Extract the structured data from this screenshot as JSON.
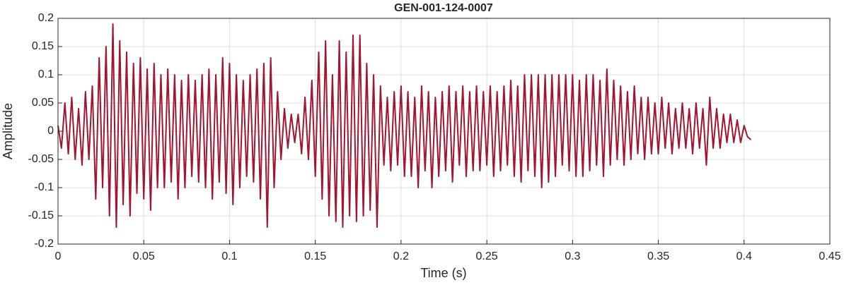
{
  "chart_data": {
    "type": "line",
    "title": "GEN-001-124-0007",
    "xlabel": "Time (s)",
    "ylabel": "Amplitude",
    "x": [
      0,
      0.002,
      0.004,
      0.006,
      0.008,
      0.01,
      0.012,
      0.014,
      0.016,
      0.018,
      0.02,
      0.022,
      0.024,
      0.026,
      0.028,
      0.03,
      0.032,
      0.034,
      0.036,
      0.038,
      0.04,
      0.042,
      0.044,
      0.046,
      0.048,
      0.05,
      0.052,
      0.054,
      0.056,
      0.058,
      0.06,
      0.062,
      0.064,
      0.066,
      0.068,
      0.07,
      0.072,
      0.074,
      0.076,
      0.078,
      0.08,
      0.082,
      0.084,
      0.086,
      0.088,
      0.09,
      0.092,
      0.094,
      0.096,
      0.098,
      0.1,
      0.102,
      0.104,
      0.106,
      0.108,
      0.11,
      0.112,
      0.114,
      0.116,
      0.118,
      0.12,
      0.122,
      0.124,
      0.126,
      0.128,
      0.13,
      0.132,
      0.134,
      0.136,
      0.138,
      0.14,
      0.142,
      0.144,
      0.146,
      0.148,
      0.15,
      0.152,
      0.154,
      0.156,
      0.158,
      0.16,
      0.162,
      0.164,
      0.166,
      0.168,
      0.17,
      0.172,
      0.174,
      0.176,
      0.178,
      0.18,
      0.182,
      0.184,
      0.186,
      0.188,
      0.19,
      0.192,
      0.194,
      0.196,
      0.198,
      0.2,
      0.202,
      0.204,
      0.206,
      0.208,
      0.21,
      0.212,
      0.214,
      0.216,
      0.218,
      0.22,
      0.222,
      0.224,
      0.226,
      0.228,
      0.23,
      0.232,
      0.234,
      0.236,
      0.238,
      0.24,
      0.242,
      0.244,
      0.246,
      0.248,
      0.25,
      0.252,
      0.254,
      0.256,
      0.258,
      0.26,
      0.262,
      0.264,
      0.266,
      0.268,
      0.27,
      0.272,
      0.274,
      0.276,
      0.278,
      0.28,
      0.282,
      0.284,
      0.286,
      0.288,
      0.29,
      0.292,
      0.294,
      0.296,
      0.298,
      0.3,
      0.302,
      0.304,
      0.306,
      0.308,
      0.31,
      0.312,
      0.314,
      0.316,
      0.318,
      0.32,
      0.322,
      0.324,
      0.326,
      0.328,
      0.33,
      0.332,
      0.334,
      0.336,
      0.338,
      0.34,
      0.342,
      0.344,
      0.346,
      0.348,
      0.35,
      0.352,
      0.354,
      0.356,
      0.358,
      0.36,
      0.362,
      0.364,
      0.366,
      0.368,
      0.37,
      0.372,
      0.374,
      0.376,
      0.378,
      0.38,
      0.382,
      0.384,
      0.386,
      0.388,
      0.39,
      0.392,
      0.394,
      0.396,
      0.398,
      0.4,
      0.402,
      0.404
    ],
    "series": [
      {
        "color": "#a2142f",
        "values": [
          0.01,
          -0.03,
          0.05,
          -0.04,
          0.06,
          -0.05,
          0.04,
          -0.06,
          0.07,
          -0.05,
          0.08,
          -0.12,
          0.13,
          -0.1,
          0.15,
          -0.15,
          0.19,
          -0.17,
          0.16,
          -0.13,
          0.14,
          -0.15,
          0.12,
          -0.11,
          0.13,
          -0.12,
          0.11,
          -0.14,
          0.12,
          -0.1,
          0.1,
          -0.1,
          0.11,
          -0.09,
          0.1,
          -0.12,
          0.09,
          -0.1,
          0.1,
          -0.08,
          0.09,
          -0.09,
          0.1,
          -0.1,
          0.11,
          -0.12,
          0.1,
          -0.09,
          0.13,
          -0.11,
          0.12,
          -0.13,
          0.1,
          -0.1,
          0.09,
          -0.08,
          0.1,
          -0.09,
          0.11,
          -0.12,
          0.12,
          -0.17,
          0.13,
          -0.1,
          0.07,
          -0.05,
          0.04,
          -0.03,
          0.03,
          -0.02,
          0.03,
          -0.04,
          0.06,
          -0.05,
          0.09,
          -0.08,
          0.14,
          -0.12,
          0.16,
          -0.15,
          0.1,
          -0.16,
          0.16,
          -0.17,
          0.14,
          -0.15,
          0.17,
          -0.16,
          0.17,
          -0.15,
          0.12,
          -0.14,
          0.1,
          -0.17,
          0.08,
          -0.06,
          0.06,
          -0.07,
          0.07,
          -0.06,
          0.08,
          -0.08,
          0.07,
          -0.08,
          0.06,
          -0.1,
          0.08,
          -0.07,
          0.07,
          -0.1,
          0.06,
          -0.08,
          0.07,
          -0.07,
          0.08,
          -0.09,
          0.07,
          -0.06,
          0.08,
          -0.08,
          0.07,
          -0.07,
          0.08,
          -0.07,
          0.07,
          -0.06,
          0.08,
          -0.08,
          0.07,
          -0.07,
          0.08,
          -0.06,
          0.09,
          -0.08,
          0.08,
          -0.09,
          0.1,
          -0.07,
          0.1,
          -0.08,
          0.1,
          -0.1,
          0.1,
          -0.09,
          0.1,
          -0.08,
          0.1,
          -0.06,
          0.1,
          -0.07,
          0.1,
          -0.08,
          0.09,
          -0.08,
          0.1,
          -0.07,
          0.1,
          -0.06,
          0.09,
          -0.08,
          0.11,
          -0.06,
          0.09,
          -0.05,
          0.08,
          -0.06,
          0.07,
          -0.05,
          0.08,
          -0.04,
          0.06,
          -0.05,
          0.06,
          -0.04,
          0.05,
          -0.04,
          0.06,
          -0.03,
          0.05,
          -0.04,
          0.04,
          -0.03,
          0.05,
          -0.03,
          0.04,
          -0.04,
          0.05,
          -0.03,
          0.04,
          -0.06,
          0.06,
          -0.03,
          0.04,
          -0.03,
          0.03,
          -0.02,
          0.03,
          -0.02,
          0.02,
          -0.02,
          0.01,
          -0.01,
          -0.015
        ]
      }
    ],
    "xlim": [
      0,
      0.45
    ],
    "xticks": [
      0,
      0.05,
      0.1,
      0.15,
      0.2,
      0.25,
      0.3,
      0.35,
      0.4,
      0.45
    ],
    "ylim": [
      -0.2,
      0.2
    ],
    "yticks": [
      -0.2,
      -0.15,
      -0.1,
      -0.05,
      0,
      0.05,
      0.1,
      0.15,
      0.2
    ],
    "grid": true
  }
}
